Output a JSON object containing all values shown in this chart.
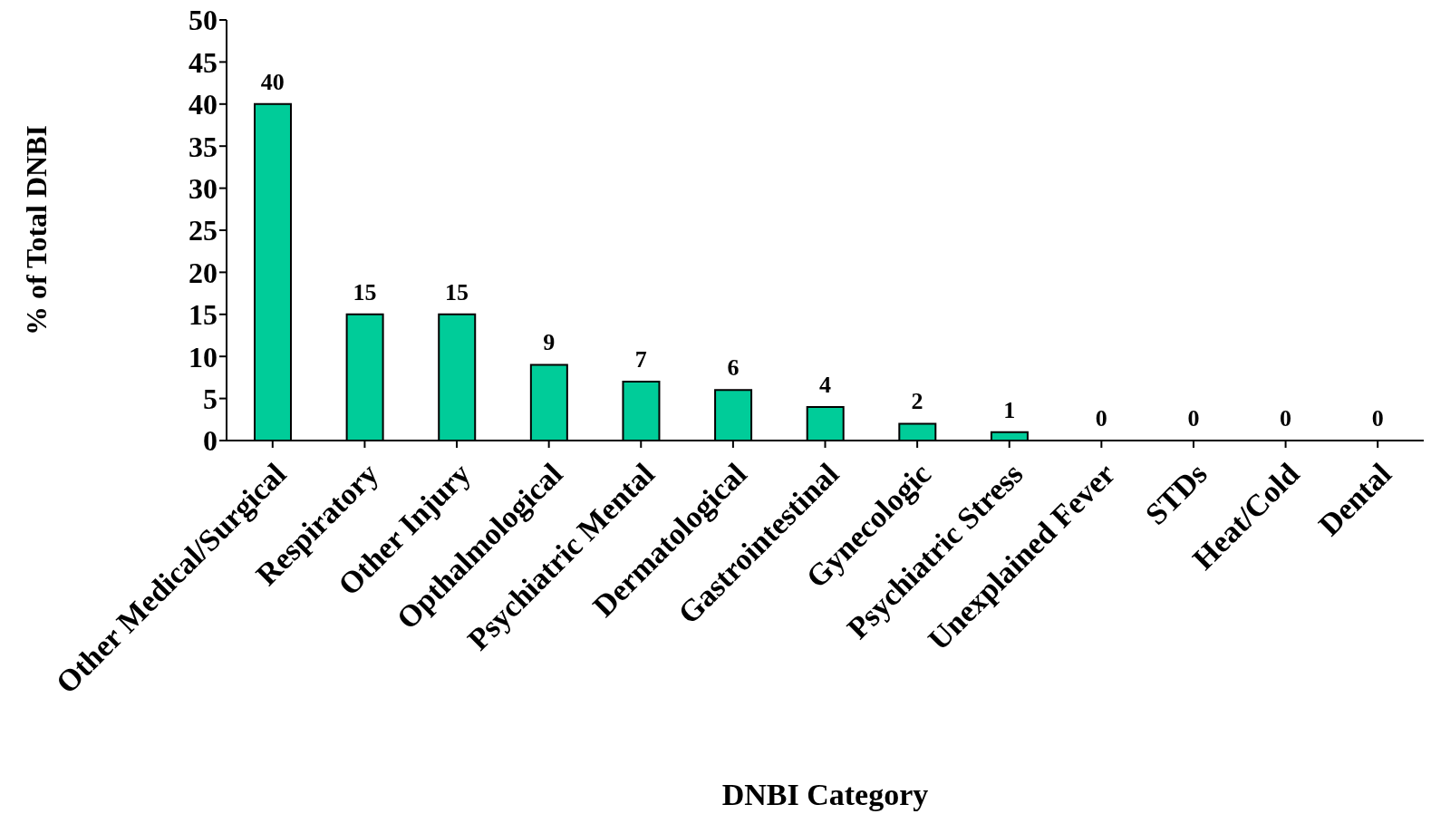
{
  "chart_data": {
    "type": "bar",
    "xlabel": "DNBI Category",
    "ylabel": "% of Total DNBI",
    "categories": [
      "Other Medical/Surgical",
      "Respiratory",
      "Other Injury",
      "Opthalmological",
      "Psychiatric Mental",
      "Dermatological",
      "Gastrointestinal",
      "Gynecologic",
      "Psychiatric Stress",
      "Unexplained Fever",
      "STDs",
      "Heat/Cold",
      "Dental"
    ],
    "values": [
      40,
      15,
      15,
      9,
      7,
      6,
      4,
      2,
      1,
      0,
      0,
      0,
      0
    ],
    "color": "#00cc99",
    "ylim": [
      0,
      50
    ],
    "yticks": [
      0,
      5,
      10,
      15,
      20,
      25,
      30,
      35,
      40,
      45,
      50
    ],
    "data_labels": true,
    "grid": false,
    "legend": false
  }
}
